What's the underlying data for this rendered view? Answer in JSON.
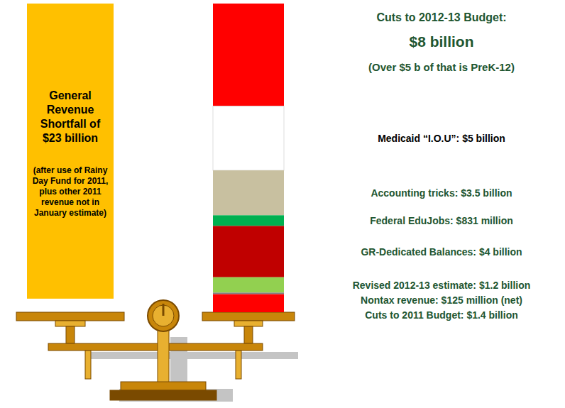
{
  "chart_data": {
    "type": "bar",
    "stacked": true,
    "tick_labels": false,
    "data_labels": false,
    "shortfall": {
      "label": "General Revenue Shortfall of $23 billion",
      "note": "(after use of Rainy Day Fund for 2011, plus other 2011 revenue not in January estimate)",
      "value": 23,
      "color": "#ffc000"
    },
    "categories": [
      "Cuts to 2012-13 Budget: $8 billion",
      "Medicaid “I.O.U”: $5 billion",
      "Accounting tricks: $3.5 billion",
      "Federal EduJobs: $831 million",
      "GR-Dedicated Balances: $4 billion",
      "Revised 2012-13 estimate: $1.2 billion",
      "Nontax revenue: $125 million (net)",
      "Cuts to 2011 Budget: $1.4 billion"
    ],
    "values": [
      8,
      5,
      3.5,
      0.831,
      4,
      1.2,
      0.125,
      1.4
    ],
    "colors": [
      "#ff0000",
      "#ffffff",
      "#c8c0a0",
      "#00b050",
      "#c00000",
      "#92d050",
      "#7f7f7f",
      "#ff0000"
    ],
    "annotation": "(Over $5 b of that is PreK-12)"
  }
}
